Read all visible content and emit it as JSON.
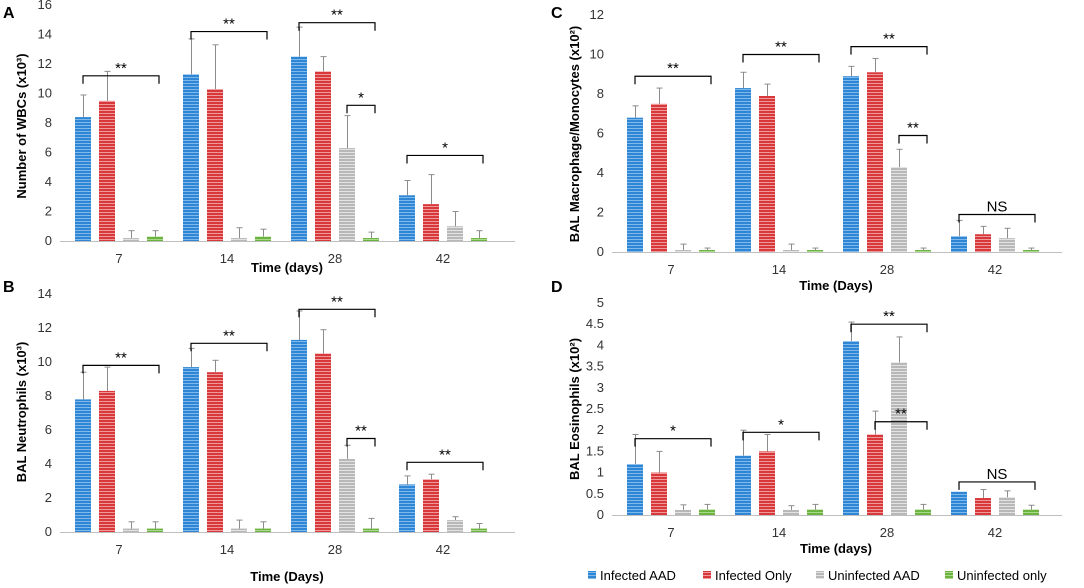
{
  "legend": [
    {
      "name": "Infected AAD",
      "color": "#2E86D4"
    },
    {
      "name": "Infected Only",
      "color": "#D9383A"
    },
    {
      "name": "Uninfected AAD",
      "color": "#B8B8B8"
    },
    {
      "name": "Uninfected only",
      "color": "#6DB33F"
    }
  ],
  "chart_data": [
    {
      "panel": "A",
      "type": "bar",
      "ylabel": "Number of WBCs (x10³)",
      "xlabel": "Time (days)",
      "ylim": [
        0,
        16
      ],
      "ytick_step": 2,
      "categories": [
        "7",
        "14",
        "28",
        "42"
      ],
      "series": [
        {
          "name": "Infected AAD",
          "values": [
            8.4,
            11.3,
            12.5,
            3.1
          ],
          "errors": [
            1.5,
            2.4,
            2.0,
            1.0
          ]
        },
        {
          "name": "Infected Only",
          "values": [
            9.5,
            10.3,
            11.5,
            2.5
          ],
          "errors": [
            2.0,
            3.0,
            1.0,
            2.0
          ]
        },
        {
          "name": "Uninfected AAD",
          "values": [
            0.2,
            0.2,
            6.3,
            1.0
          ],
          "errors": [
            0.5,
            0.7,
            2.2,
            1.0
          ]
        },
        {
          "name": "Uninfected only",
          "values": [
            0.3,
            0.3,
            0.2,
            0.2
          ],
          "errors": [
            0.4,
            0.5,
            0.4,
            0.5
          ]
        }
      ],
      "annotations": [
        {
          "label": "**",
          "group": 0,
          "from": 0,
          "to": 3,
          "at": 11.2
        },
        {
          "label": "**",
          "group": 1,
          "from": 0,
          "to": 3,
          "at": 14.2
        },
        {
          "label": "**",
          "group": 2,
          "from": 0,
          "to": 3,
          "at": 14.8
        },
        {
          "label": "*",
          "group": 2,
          "from": 2,
          "to": 3,
          "at": 9.2
        },
        {
          "label": "*",
          "group": 3,
          "from": 0,
          "to": 3,
          "at": 5.8
        }
      ]
    },
    {
      "panel": "B",
      "type": "bar",
      "ylabel": "BAL Neutrophils (x10³)",
      "xlabel": "Time (Days)",
      "ylim": [
        0,
        14
      ],
      "ytick_step": 2,
      "categories": [
        "7",
        "14",
        "28",
        "42"
      ],
      "series": [
        {
          "name": "Infected AAD",
          "values": [
            7.8,
            9.7,
            11.3,
            2.8
          ],
          "errors": [
            1.6,
            1.1,
            1.7,
            0.5
          ]
        },
        {
          "name": "Infected Only",
          "values": [
            8.3,
            9.4,
            10.5,
            3.1
          ],
          "errors": [
            1.4,
            0.7,
            1.4,
            0.3
          ]
        },
        {
          "name": "Uninfected AAD",
          "values": [
            0.2,
            0.2,
            4.3,
            0.7
          ],
          "errors": [
            0.4,
            0.5,
            0.8,
            0.2
          ]
        },
        {
          "name": "Uninfected only",
          "values": [
            0.2,
            0.2,
            0.2,
            0.2
          ],
          "errors": [
            0.4,
            0.4,
            0.6,
            0.3
          ]
        }
      ],
      "annotations": [
        {
          "label": "**",
          "group": 0,
          "from": 0,
          "to": 3,
          "at": 9.8
        },
        {
          "label": "**",
          "group": 1,
          "from": 0,
          "to": 3,
          "at": 11.1
        },
        {
          "label": "**",
          "group": 2,
          "from": 0,
          "to": 3,
          "at": 13.1
        },
        {
          "label": "**",
          "group": 2,
          "from": 2,
          "to": 3,
          "at": 5.5
        },
        {
          "label": "**",
          "group": 3,
          "from": 0,
          "to": 3,
          "at": 4.1
        }
      ]
    },
    {
      "panel": "C",
      "type": "bar",
      "ylabel": "BAL Macrophage/Monocytes (x10²)",
      "xlabel": "Time (Days)",
      "ylim": [
        0,
        12
      ],
      "ytick_step": 2,
      "categories": [
        "7",
        "14",
        "28",
        "42"
      ],
      "series": [
        {
          "name": "Infected AAD",
          "values": [
            6.8,
            8.3,
            8.9,
            0.8
          ],
          "errors": [
            0.6,
            0.8,
            0.5,
            0.8
          ]
        },
        {
          "name": "Infected Only",
          "values": [
            7.5,
            7.9,
            9.1,
            0.9
          ],
          "errors": [
            0.8,
            0.6,
            0.7,
            0.4
          ]
        },
        {
          "name": "Uninfected AAD",
          "values": [
            0.1,
            0.1,
            4.3,
            0.7
          ],
          "errors": [
            0.3,
            0.3,
            0.9,
            0.5
          ]
        },
        {
          "name": "Uninfected only",
          "values": [
            0.1,
            0.1,
            0.1,
            0.1
          ],
          "errors": [
            0.1,
            0.1,
            0.1,
            0.1
          ]
        }
      ],
      "annotations": [
        {
          "label": "**",
          "group": 0,
          "from": 0,
          "to": 3,
          "at": 8.9
        },
        {
          "label": "**",
          "group": 1,
          "from": 0,
          "to": 3,
          "at": 10.0
        },
        {
          "label": "**",
          "group": 2,
          "from": 0,
          "to": 3,
          "at": 10.4
        },
        {
          "label": "**",
          "group": 2,
          "from": 2,
          "to": 3,
          "at": 5.9
        },
        {
          "label": "NS",
          "group": 3,
          "from": 0,
          "to": 3,
          "at": 1.9
        }
      ]
    },
    {
      "panel": "D",
      "type": "bar",
      "ylabel": "BAL Eosinophils (x10²)",
      "xlabel": "Time (days)",
      "ylim": [
        0,
        5
      ],
      "ytick_step": 0.5,
      "categories": [
        "7",
        "14",
        "28",
        "42"
      ],
      "series": [
        {
          "name": "Infected AAD",
          "values": [
            1.2,
            1.4,
            4.1,
            0.55
          ],
          "errors": [
            0.7,
            0.6,
            0.45,
            0.0
          ]
        },
        {
          "name": "Infected Only",
          "values": [
            1.0,
            1.5,
            1.9,
            0.4
          ],
          "errors": [
            0.5,
            0.4,
            0.55,
            0.2
          ]
        },
        {
          "name": "Uninfected AAD",
          "values": [
            0.12,
            0.12,
            3.6,
            0.42
          ],
          "errors": [
            0.12,
            0.1,
            0.6,
            0.15
          ]
        },
        {
          "name": "Uninfected only",
          "values": [
            0.13,
            0.13,
            0.13,
            0.13
          ],
          "errors": [
            0.12,
            0.12,
            0.12,
            0.1
          ]
        }
      ],
      "annotations": [
        {
          "label": "*",
          "group": 0,
          "from": 0,
          "to": 3,
          "at": 1.8
        },
        {
          "label": "*",
          "group": 1,
          "from": 0,
          "to": 3,
          "at": 1.95
        },
        {
          "label": "**",
          "group": 2,
          "from": 0,
          "to": 3,
          "at": 4.5
        },
        {
          "label": "**",
          "group": 2,
          "from": 1,
          "to": 3,
          "at": 2.2
        },
        {
          "label": "NS",
          "group": 3,
          "from": 0,
          "to": 3,
          "at": 0.78
        }
      ]
    }
  ]
}
